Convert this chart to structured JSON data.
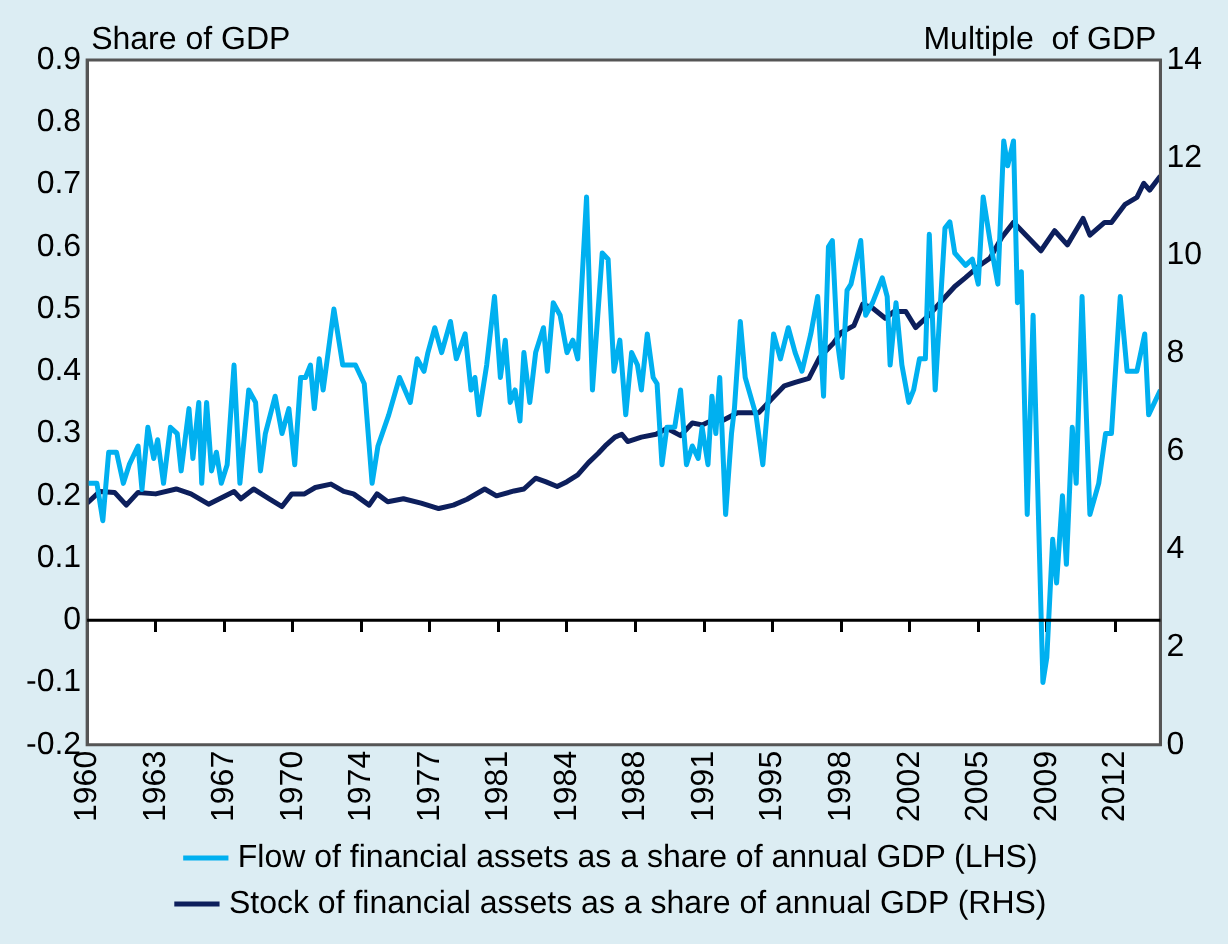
{
  "chart_data": {
    "type": "line",
    "ylabel": "Share of GDP",
    "y2label": "Multiple  of GDP",
    "xlim": [
      1960,
      2014.8
    ],
    "xticks": [
      1960,
      {
        "value": 1963.5,
        "label": "1963"
      },
      1967,
      {
        "value": 1970.5,
        "label": "1970"
      },
      1974,
      {
        "value": 1977.5,
        "label": "1977"
      },
      1981,
      {
        "value": 1984.5,
        "label": "1984"
      },
      1988,
      {
        "value": 1991.5,
        "label": "1991"
      },
      1995,
      {
        "value": 1998.5,
        "label": "1998"
      },
      2002,
      {
        "value": 2005.5,
        "label": "2005"
      },
      2009,
      {
        "value": 2012.5,
        "label": "2012"
      }
    ],
    "ylim": [
      -0.2,
      0.9
    ],
    "yticks": [
      -0.2,
      -0.1,
      0,
      0.1,
      0.2,
      0.3,
      0.4,
      0.5,
      0.6,
      0.7,
      0.8,
      0.9
    ],
    "y2lim": [
      0,
      14
    ],
    "y2ticks": [
      0,
      2,
      4,
      6,
      8,
      10,
      12,
      14
    ],
    "grid": false,
    "ref_lines": [
      {
        "axis": "y",
        "value": 0,
        "color": "#000000"
      }
    ],
    "legend": "bottom",
    "marker": "none",
    "line_style": "solid",
    "series": [
      {
        "name": "Flow of financial assets as a share of annual GDP (LHS)",
        "color": "#00b0f0",
        "x": [
          1960,
          1960.5,
          1960.8,
          1961.1,
          1961.5,
          1961.85,
          1962.15,
          1962.6,
          1962.8,
          1963.1,
          1963.4,
          1963.6,
          1963.9,
          1964.25,
          1964.6,
          1964.8,
          1965.2,
          1965.4,
          1965.7,
          1965.85,
          1966.1,
          1966.35,
          1966.6,
          1966.85,
          1967.15,
          1967.5,
          1967.8,
          1968.25,
          1968.6,
          1968.85,
          1969.1,
          1969.6,
          1969.95,
          1970.3,
          1970.6,
          1970.9,
          1971.15,
          1971.4,
          1971.6,
          1971.85,
          1972.05,
          1972.6,
          1973.05,
          1973.7,
          1974.15,
          1974.55,
          1974.85,
          1975.4,
          1975.95,
          1976.5,
          1976.85,
          1977.2,
          1977.4,
          1977.75,
          1978.1,
          1978.55,
          1978.85,
          1979.3,
          1979.6,
          1979.8,
          1980,
          1980.4,
          1980.8,
          1981.1,
          1981.35,
          1981.6,
          1981.85,
          1982.1,
          1982.3,
          1982.6,
          1982.9,
          1983.3,
          1983.5,
          1983.8,
          1984.15,
          1984.5,
          1984.8,
          1985.05,
          1985.5,
          1985.8,
          1986.3,
          1986.6,
          1986.9,
          1987.2,
          1987.5,
          1987.8,
          1988.1,
          1988.3,
          1988.6,
          1988.9,
          1989.1,
          1989.35,
          1989.6,
          1990,
          1990.3,
          1990.6,
          1990.9,
          1991.2,
          1991.4,
          1991.7,
          1991.9,
          1992.1,
          1992.3,
          1992.6,
          1992.9,
          1993.05,
          1993.35,
          1993.6,
          1994.15,
          1994.5,
          1995.05,
          1995.4,
          1995.8,
          1996.15,
          1996.5,
          1996.95,
          1997.3,
          1997.6,
          1997.85,
          1998.05,
          1998.3,
          1998.55,
          1998.8,
          1999,
          1999.5,
          1999.75,
          2000.1,
          2000.6,
          2000.85,
          2001,
          2001.3,
          2001.6,
          2001.95,
          2002.2,
          2002.5,
          2002.8,
          2003,
          2003.3,
          2003.8,
          2004.05,
          2004.3,
          2004.85,
          2005.2,
          2005.5,
          2005.75,
          2006.1,
          2006.5,
          2006.8,
          2007,
          2007.3,
          2007.5,
          2007.7,
          2008,
          2008.3,
          2008.8,
          2009,
          2009.3,
          2009.5,
          2009.8,
          2010,
          2010.3,
          2010.5,
          2010.8,
          2011.2,
          2011.65,
          2012,
          2012.3,
          2012.75,
          2013.1,
          2013.6,
          2014,
          2014.2,
          2014.8
        ],
        "values": [
          0.22,
          0.22,
          0.16,
          0.27,
          0.27,
          0.22,
          0.25,
          0.28,
          0.21,
          0.31,
          0.26,
          0.29,
          0.22,
          0.31,
          0.3,
          0.24,
          0.34,
          0.26,
          0.35,
          0.22,
          0.35,
          0.24,
          0.27,
          0.22,
          0.25,
          0.41,
          0.22,
          0.37,
          0.35,
          0.24,
          0.3,
          0.36,
          0.3,
          0.34,
          0.25,
          0.39,
          0.39,
          0.41,
          0.34,
          0.42,
          0.37,
          0.5,
          0.41,
          0.41,
          0.38,
          0.22,
          0.28,
          0.33,
          0.39,
          0.35,
          0.42,
          0.4,
          0.43,
          0.47,
          0.43,
          0.48,
          0.42,
          0.46,
          0.37,
          0.39,
          0.33,
          0.41,
          0.52,
          0.39,
          0.45,
          0.35,
          0.37,
          0.32,
          0.43,
          0.35,
          0.43,
          0.47,
          0.4,
          0.51,
          0.49,
          0.43,
          0.45,
          0.42,
          0.68,
          0.37,
          0.59,
          0.58,
          0.4,
          0.45,
          0.33,
          0.43,
          0.41,
          0.37,
          0.46,
          0.39,
          0.38,
          0.25,
          0.31,
          0.31,
          0.37,
          0.25,
          0.28,
          0.26,
          0.31,
          0.25,
          0.36,
          0.3,
          0.39,
          0.17,
          0.3,
          0.34,
          0.48,
          0.39,
          0.33,
          0.25,
          0.46,
          0.42,
          0.47,
          0.43,
          0.4,
          0.46,
          0.52,
          0.36,
          0.6,
          0.61,
          0.45,
          0.39,
          0.53,
          0.54,
          0.61,
          0.49,
          0.51,
          0.55,
          0.52,
          0.41,
          0.51,
          0.41,
          0.35,
          0.37,
          0.42,
          0.42,
          0.62,
          0.37,
          0.63,
          0.64,
          0.59,
          0.57,
          0.58,
          0.54,
          0.68,
          0.61,
          0.54,
          0.77,
          0.73,
          0.77,
          0.51,
          0.56,
          0.17,
          0.49,
          -0.1,
          -0.06,
          0.13,
          0.06,
          0.2,
          0.09,
          0.31,
          0.22,
          0.52,
          0.17,
          0.22,
          0.3,
          0.3,
          0.52,
          0.4,
          0.4,
          0.46,
          0.33,
          0.37
        ]
      },
      {
        "name": "Stock of financial assets as a share of annual GDP (RHS)",
        "color": "#0d1f5c",
        "axis": "y2",
        "x": [
          1960,
          1960.65,
          1961.4,
          1962,
          1962.6,
          1963.5,
          1964.55,
          1965.3,
          1966.2,
          1967.5,
          1967.85,
          1968.5,
          1969.3,
          1969.95,
          1970.45,
          1971.1,
          1971.65,
          1972.45,
          1973.1,
          1973.6,
          1974.4,
          1974.8,
          1975.35,
          1976.15,
          1977.05,
          1977.95,
          1978.7,
          1979.4,
          1980.3,
          1980.9,
          1981.8,
          1982.3,
          1982.9,
          1983.4,
          1984,
          1984.5,
          1985.05,
          1985.6,
          1986.1,
          1986.45,
          1986.95,
          1987.3,
          1987.6,
          1988.3,
          1989.05,
          1989.6,
          1990.3,
          1990.9,
          1991.4,
          1991.95,
          1992.5,
          1993.2,
          1994.3,
          1994.9,
          1995.6,
          1996.15,
          1996.85,
          1997.4,
          1998.1,
          1998.5,
          1999.15,
          1999.6,
          2000.1,
          2000.75,
          2001.2,
          2001.8,
          2002.3,
          2003,
          2003.8,
          2004.3,
          2004.85,
          2005.6,
          2006.1,
          2006.7,
          2007.3,
          2008,
          2008.7,
          2009.4,
          2010.05,
          2010.85,
          2011.2,
          2011.95,
          2012.3,
          2013,
          2013.6,
          2013.95,
          2014.25,
          2014.8
        ],
        "values": [
          4.94,
          5.18,
          5.16,
          4.9,
          5.16,
          5.13,
          5.23,
          5.13,
          4.92,
          5.18,
          5.03,
          5.23,
          5.03,
          4.87,
          5.13,
          5.13,
          5.26,
          5.33,
          5.18,
          5.13,
          4.9,
          5.13,
          4.97,
          5.03,
          4.94,
          4.83,
          4.9,
          5.02,
          5.23,
          5.09,
          5.19,
          5.23,
          5.45,
          5.38,
          5.28,
          5.38,
          5.52,
          5.77,
          5.96,
          6.11,
          6.29,
          6.35,
          6.2,
          6.29,
          6.35,
          6.47,
          6.32,
          6.58,
          6.54,
          6.64,
          6.64,
          6.79,
          6.79,
          7.05,
          7.34,
          7.41,
          7.49,
          7.92,
          8.21,
          8.43,
          8.57,
          9.01,
          8.93,
          8.72,
          8.86,
          8.86,
          8.53,
          8.79,
          9.15,
          9.37,
          9.55,
          9.81,
          9.95,
          10.37,
          10.68,
          10.39,
          10.1,
          10.51,
          10.22,
          10.76,
          10.42,
          10.68,
          10.68,
          11.05,
          11.19,
          11.48,
          11.34,
          11.63
        ]
      }
    ]
  }
}
